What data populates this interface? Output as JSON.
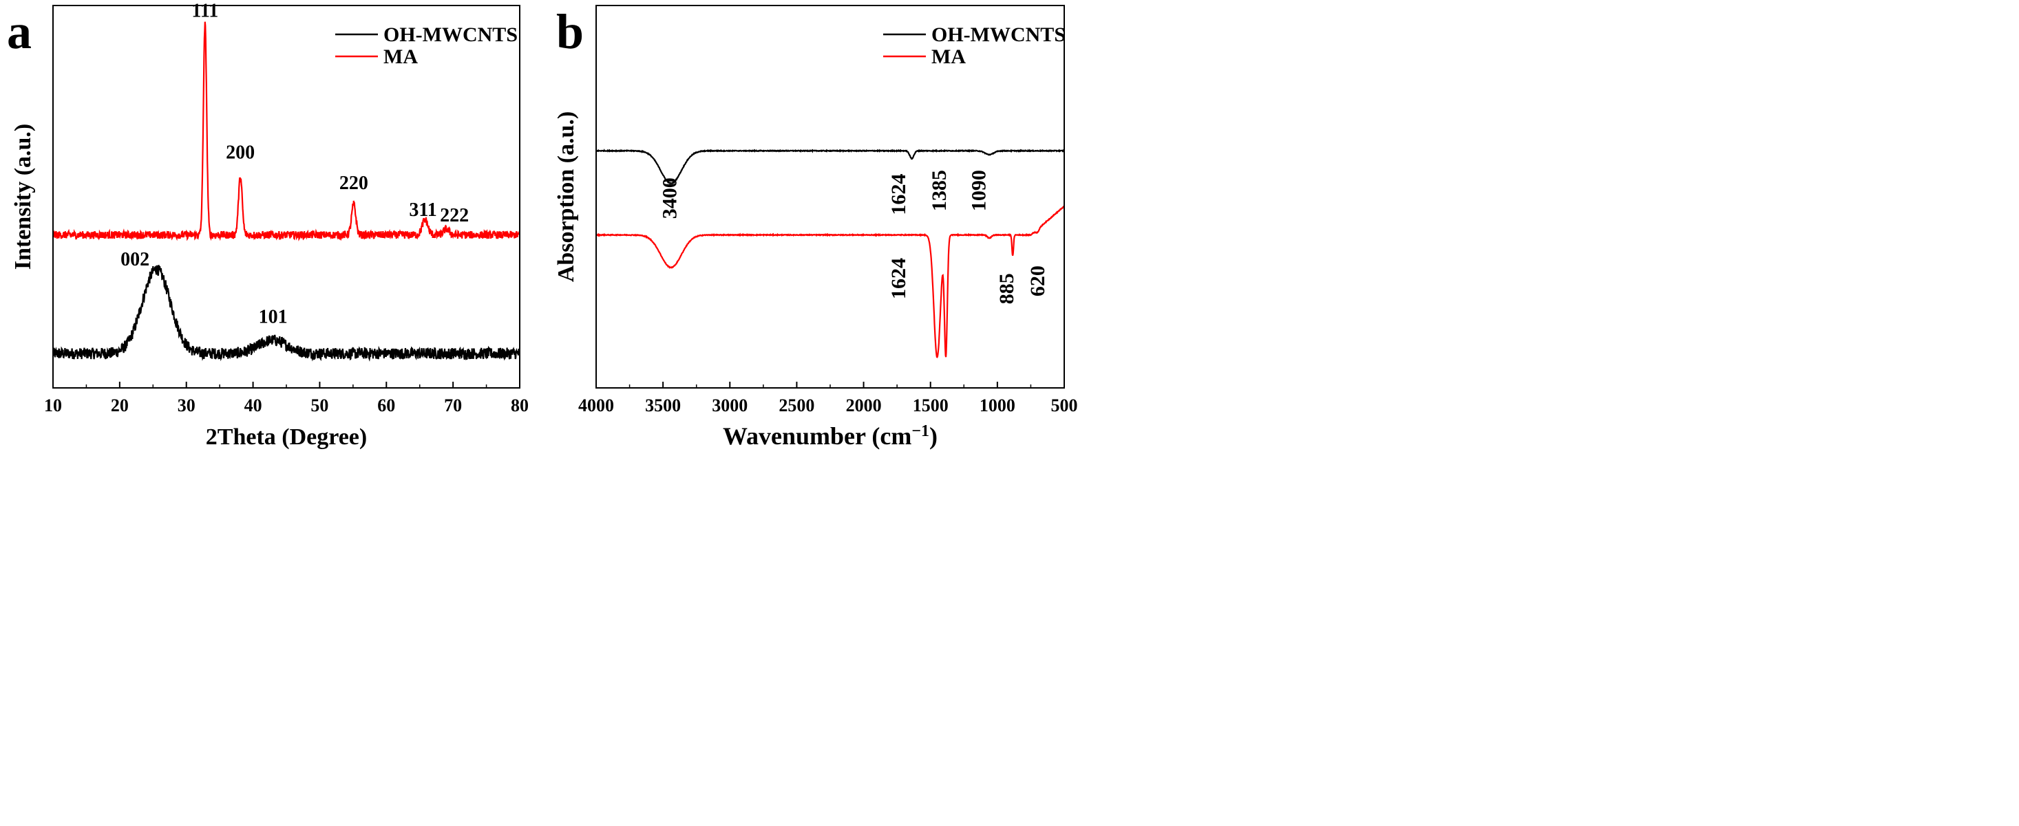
{
  "chart_data": [
    {
      "panel_label": "a",
      "type": "line",
      "title": "",
      "xlabel": "2Theta (Degree)",
      "ylabel": "Intensity (a.u.)",
      "xlim": [
        10,
        80
      ],
      "ylim": [
        0,
        100
      ],
      "x_ticks": [
        10,
        20,
        30,
        40,
        50,
        60,
        70,
        80
      ],
      "x_tick_labels": [
        "10",
        "20",
        "30",
        "40",
        "50",
        "60",
        "70",
        "80"
      ],
      "grid": false,
      "legend_position": "top-right",
      "series": [
        {
          "name": "OH-MWCNTS",
          "color": "#000000",
          "baseline": 9,
          "noise": 1.5,
          "peaks": [
            {
              "x": 25.5,
              "height": 22,
              "width": 3.0
            },
            {
              "x": 43.0,
              "height": 3.5,
              "width": 3.0
            }
          ]
        },
        {
          "name": "MA",
          "color": "#ff0000",
          "baseline": 40,
          "noise": 1.0,
          "peaks": [
            {
              "x": 32.8,
              "height": 55,
              "width": 0.35
            },
            {
              "x": 38.1,
              "height": 15,
              "width": 0.4
            },
            {
              "x": 55.1,
              "height": 8,
              "width": 0.45
            },
            {
              "x": 65.8,
              "height": 4,
              "width": 0.6
            },
            {
              "x": 69.0,
              "height": 1.5,
              "width": 0.6
            }
          ]
        }
      ],
      "annotations": [
        {
          "text": "111",
          "x": 32.8,
          "y": 97
        },
        {
          "text": "200",
          "x": 38.1,
          "y": 60
        },
        {
          "text": "220",
          "x": 55.1,
          "y": 52
        },
        {
          "text": "311",
          "x": 65.5,
          "y": 45
        },
        {
          "text": "222",
          "x": 70.2,
          "y": 43.5
        },
        {
          "text": "002",
          "x": 22.3,
          "y": 32
        },
        {
          "text": "101",
          "x": 43.0,
          "y": 17
        }
      ]
    },
    {
      "panel_label": "b",
      "type": "line",
      "title": "",
      "xlabel": "Wavenumber (cm−1)",
      "xlabel_main": "Wavenumber (cm",
      "xlabel_sup": "−1",
      "xlabel_close": ")",
      "ylabel": "Absorption (a.u.)",
      "xlim": [
        4000,
        500
      ],
      "ylim": [
        0,
        100
      ],
      "x_ticks": [
        4000,
        3500,
        3000,
        2500,
        2000,
        1500,
        1000,
        500
      ],
      "x_tick_labels": [
        "4000",
        "3500",
        "3000",
        "2500",
        "2000",
        "1500",
        "1000",
        "500"
      ],
      "grid": false,
      "legend_position": "top-right",
      "series": [
        {
          "name": "OH-MWCNTS",
          "color": "#000000",
          "baseline": 62,
          "noise": 0.1,
          "bands": [
            {
              "x": 3440,
              "depth": 8.5,
              "width": 110
            },
            {
              "x": 1640,
              "depth": 2.0,
              "width": 22
            },
            {
              "x": 1060,
              "depth": 1.0,
              "width": 45
            }
          ]
        },
        {
          "name": "MA",
          "color": "#ff0000",
          "baseline": 40,
          "noise": 0.1,
          "bands": [
            {
              "x": 3440,
              "depth": 8.5,
              "width": 110
            },
            {
              "x": 1450,
              "depth": 32,
              "width": 35
            },
            {
              "x": 1385,
              "depth": 31,
              "width": 15
            },
            {
              "x": 885,
              "depth": 5.5,
              "width": 8
            },
            {
              "x": 1060,
              "depth": 0.8,
              "width": 22
            },
            {
              "x": 700,
              "depth": 0.8,
              "width": 18
            }
          ]
        }
      ],
      "annotations": [
        {
          "text": "3400",
          "x": 3400,
          "y": 55
        },
        {
          "text": "1624",
          "x": 1690,
          "y": 56
        },
        {
          "text": "1385",
          "x": 1385,
          "y": 57
        },
        {
          "text": "1090",
          "x": 1090,
          "y": 57
        },
        {
          "text": "1624",
          "x": 1690,
          "y": 34
        },
        {
          "text": "885",
          "x": 880,
          "y": 30
        },
        {
          "text": "620",
          "x": 650,
          "y": 32
        }
      ]
    }
  ]
}
